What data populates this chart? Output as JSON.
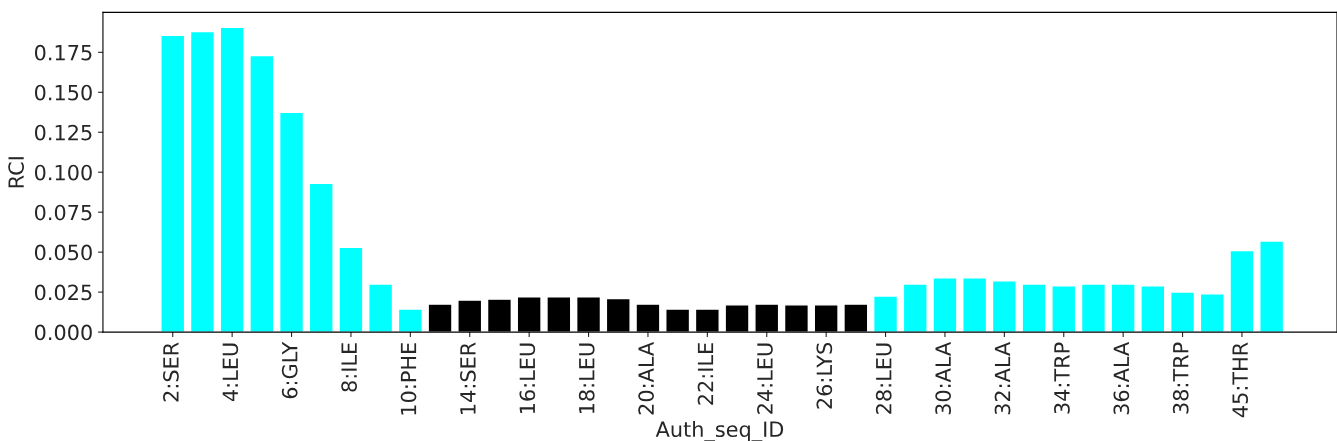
{
  "chart_data": {
    "type": "bar",
    "xlabel": "Auth_seq_ID",
    "ylabel": "RCI",
    "categories": [
      "2:SER",
      null,
      "4:LEU",
      null,
      "6:GLY",
      null,
      "8:ILE",
      null,
      "10:PHE",
      null,
      "14:SER",
      null,
      "16:LEU",
      null,
      "18:LEU",
      null,
      "20:ALA",
      null,
      "22:ILE",
      null,
      "24:LEU",
      null,
      "26:LYS",
      null,
      "28:LEU",
      null,
      "30:ALA",
      null,
      "32:ALA",
      null,
      "34:TRP",
      null,
      "36:ALA",
      null,
      "38:TRP",
      null,
      "45:THR",
      null
    ],
    "values": [
      0.1856,
      0.188,
      0.1906,
      0.173,
      0.1375,
      0.093,
      0.053,
      0.03,
      0.0144,
      0.0175,
      0.02,
      0.0206,
      0.022,
      0.022,
      0.022,
      0.021,
      0.0175,
      0.0144,
      0.0144,
      0.017,
      0.0175,
      0.017,
      0.017,
      0.0175,
      0.0225,
      0.03,
      0.034,
      0.034,
      0.032,
      0.03,
      0.029,
      0.03,
      0.03,
      0.029,
      0.025,
      0.024,
      0.051,
      0.057
    ],
    "colors": [
      "#00ffff",
      "#00ffff",
      "#00ffff",
      "#00ffff",
      "#00ffff",
      "#00ffff",
      "#00ffff",
      "#00ffff",
      "#00ffff",
      "#000000",
      "#000000",
      "#000000",
      "#000000",
      "#000000",
      "#000000",
      "#000000",
      "#000000",
      "#000000",
      "#000000",
      "#000000",
      "#000000",
      "#000000",
      "#000000",
      "#000000",
      "#00ffff",
      "#00ffff",
      "#00ffff",
      "#00ffff",
      "#00ffff",
      "#00ffff",
      "#00ffff",
      "#00ffff",
      "#00ffff",
      "#00ffff",
      "#00ffff",
      "#00ffff",
      "#00ffff",
      "#00ffff"
    ],
    "ylim": [
      0,
      0.2
    ],
    "yticks": [
      {
        "value": 0,
        "label": "0.000"
      },
      {
        "value": 0.025,
        "label": "0.025"
      },
      {
        "value": 0.05,
        "label": "0.050"
      },
      {
        "value": 0.075,
        "label": "0.075"
      },
      {
        "value": 0.1,
        "label": "0.100"
      },
      {
        "value": 0.125,
        "label": "0.125"
      },
      {
        "value": 0.15,
        "label": "0.150"
      },
      {
        "value": 0.175,
        "label": "0.175"
      }
    ],
    "grid": false,
    "legend": false
  }
}
